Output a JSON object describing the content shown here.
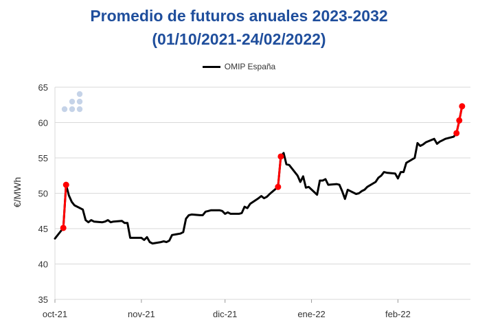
{
  "chart_data": {
    "type": "line",
    "title": "Promedio de futuros anuales 2023-2032",
    "subtitle": "(01/10/2021-24/02/2022)",
    "ylabel": "€/MWh",
    "xlabel": "",
    "ylim": [
      35,
      65
    ],
    "yticks": [
      35,
      40,
      45,
      50,
      55,
      60,
      65
    ],
    "x_tick_labels": [
      "oct-21",
      "nov-21",
      "dic-21",
      "ene-22",
      "feb-22"
    ],
    "x_tick_dates": [
      "2021-10-01",
      "2021-11-01",
      "2021-12-01",
      "2022-01-01",
      "2022-02-01"
    ],
    "xlim": [
      "2021-10-01",
      "2022-02-27"
    ],
    "grid": true,
    "legend_position": "top-center",
    "series": [
      {
        "name": "OMIP España",
        "color": "#000000",
        "points": [
          [
            "2021-10-01",
            43.6
          ],
          [
            "2021-10-04",
            45.1
          ],
          [
            "2021-10-05",
            51.2
          ],
          [
            "2021-10-06",
            49.7
          ],
          [
            "2021-10-07",
            48.8
          ],
          [
            "2021-10-08",
            48.3
          ],
          [
            "2021-10-11",
            47.7
          ],
          [
            "2021-10-12",
            46.2
          ],
          [
            "2021-10-13",
            45.9
          ],
          [
            "2021-10-14",
            46.2
          ],
          [
            "2021-10-15",
            46.0
          ],
          [
            "2021-10-18",
            45.9
          ],
          [
            "2021-10-19",
            46.0
          ],
          [
            "2021-10-20",
            46.2
          ],
          [
            "2021-10-21",
            45.9
          ],
          [
            "2021-10-22",
            46.0
          ],
          [
            "2021-10-25",
            46.1
          ],
          [
            "2021-10-26",
            45.8
          ],
          [
            "2021-10-27",
            45.8
          ],
          [
            "2021-10-28",
            43.7
          ],
          [
            "2021-10-29",
            43.7
          ],
          [
            "2021-11-01",
            43.7
          ],
          [
            "2021-11-02",
            43.4
          ],
          [
            "2021-11-03",
            43.8
          ],
          [
            "2021-11-04",
            43.1
          ],
          [
            "2021-11-05",
            42.9
          ],
          [
            "2021-11-08",
            43.1
          ],
          [
            "2021-11-09",
            43.2
          ],
          [
            "2021-11-10",
            43.1
          ],
          [
            "2021-11-11",
            43.3
          ],
          [
            "2021-11-12",
            44.1
          ],
          [
            "2021-11-15",
            44.3
          ],
          [
            "2021-11-16",
            44.5
          ],
          [
            "2021-11-17",
            46.4
          ],
          [
            "2021-11-18",
            46.9
          ],
          [
            "2021-11-19",
            47.0
          ],
          [
            "2021-11-22",
            46.9
          ],
          [
            "2021-11-23",
            46.9
          ],
          [
            "2021-11-24",
            47.4
          ],
          [
            "2021-11-25",
            47.5
          ],
          [
            "2021-11-26",
            47.6
          ],
          [
            "2021-11-29",
            47.6
          ],
          [
            "2021-11-30",
            47.5
          ],
          [
            "2021-12-01",
            47.1
          ],
          [
            "2021-12-02",
            47.3
          ],
          [
            "2021-12-03",
            47.1
          ],
          [
            "2021-12-06",
            47.1
          ],
          [
            "2021-12-07",
            47.2
          ],
          [
            "2021-12-08",
            48.1
          ],
          [
            "2021-12-09",
            47.9
          ],
          [
            "2021-12-10",
            48.5
          ],
          [
            "2021-12-13",
            49.3
          ],
          [
            "2021-12-14",
            49.6
          ],
          [
            "2021-12-15",
            49.3
          ],
          [
            "2021-12-16",
            49.5
          ],
          [
            "2021-12-17",
            49.9
          ],
          [
            "2021-12-20",
            50.9
          ],
          [
            "2021-12-21",
            55.2
          ],
          [
            "2021-12-22",
            55.7
          ],
          [
            "2021-12-23",
            54.1
          ],
          [
            "2021-12-24",
            54.0
          ],
          [
            "2021-12-27",
            52.5
          ],
          [
            "2021-12-28",
            51.6
          ],
          [
            "2021-12-29",
            52.4
          ],
          [
            "2021-12-30",
            50.8
          ],
          [
            "2021-12-31",
            50.9
          ],
          [
            "2022-01-03",
            49.8
          ],
          [
            "2022-01-04",
            51.8
          ],
          [
            "2022-01-05",
            51.8
          ],
          [
            "2022-01-06",
            52.0
          ],
          [
            "2022-01-07",
            51.2
          ],
          [
            "2022-01-10",
            51.3
          ],
          [
            "2022-01-11",
            51.2
          ],
          [
            "2022-01-12",
            50.3
          ],
          [
            "2022-01-13",
            49.2
          ],
          [
            "2022-01-14",
            50.5
          ],
          [
            "2022-01-17",
            49.9
          ],
          [
            "2022-01-18",
            50.0
          ],
          [
            "2022-01-19",
            50.3
          ],
          [
            "2022-01-20",
            50.5
          ],
          [
            "2022-01-21",
            50.9
          ],
          [
            "2022-01-24",
            51.6
          ],
          [
            "2022-01-25",
            52.2
          ],
          [
            "2022-01-26",
            52.5
          ],
          [
            "2022-01-27",
            53.0
          ],
          [
            "2022-01-28",
            52.9
          ],
          [
            "2022-01-31",
            52.8
          ],
          [
            "2022-02-01",
            52.1
          ],
          [
            "2022-02-02",
            53.0
          ],
          [
            "2022-02-03",
            53.0
          ],
          [
            "2022-02-04",
            54.3
          ],
          [
            "2022-02-07",
            55.0
          ],
          [
            "2022-02-08",
            57.1
          ],
          [
            "2022-02-09",
            56.7
          ],
          [
            "2022-02-10",
            56.9
          ],
          [
            "2022-02-11",
            57.2
          ],
          [
            "2022-02-14",
            57.7
          ],
          [
            "2022-02-15",
            57.0
          ],
          [
            "2022-02-16",
            57.3
          ],
          [
            "2022-02-17",
            57.5
          ],
          [
            "2022-02-18",
            57.7
          ],
          [
            "2022-02-21",
            58.0
          ],
          [
            "2022-02-22",
            58.5
          ],
          [
            "2022-02-23",
            60.3
          ],
          [
            "2022-02-24",
            62.3
          ]
        ]
      }
    ],
    "highlight_segments": {
      "color": "#ff0000",
      "segments": [
        [
          [
            "2021-10-04",
            45.1
          ],
          [
            "2021-10-05",
            51.2
          ]
        ],
        [
          [
            "2021-12-20",
            50.9
          ],
          [
            "2021-12-21",
            55.2
          ]
        ],
        [
          [
            "2022-02-22",
            58.5
          ],
          [
            "2022-02-23",
            60.3
          ],
          [
            "2022-02-24",
            62.3
          ]
        ]
      ]
    }
  },
  "watermark_icon": "dot-cluster-logo",
  "colors": {
    "title": "#1f4e9c",
    "series_line": "#000000",
    "highlight": "#ff0000",
    "grid": "#d9d9d9",
    "watermark": "#c5d3e8"
  }
}
